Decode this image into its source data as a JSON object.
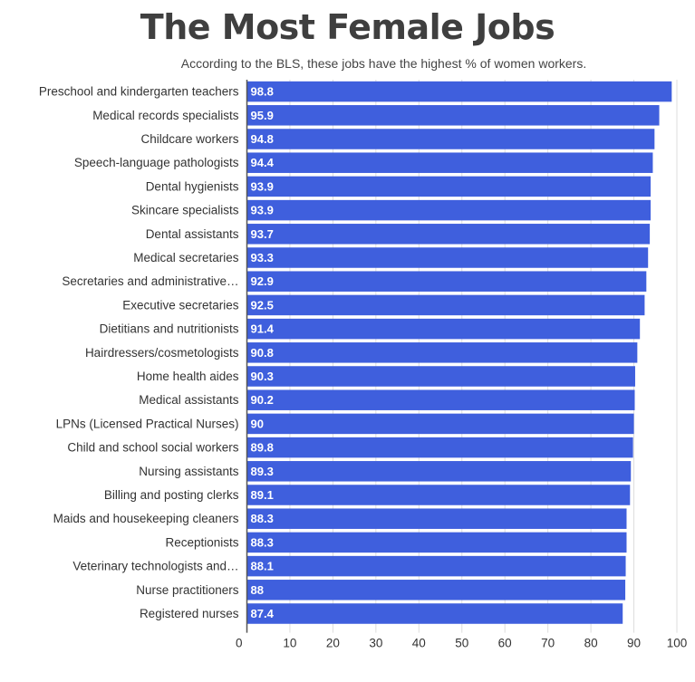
{
  "title": "The Most Female Jobs",
  "subtitle": "According to the BLS, these jobs have the highest % of women workers.",
  "colors": {
    "bar": "#3f5fdd",
    "grid": "#dddddd",
    "value_text": "#ffffff"
  },
  "chart_data": {
    "type": "bar",
    "orientation": "horizontal",
    "categories": [
      "Preschool and kindergarten teachers",
      "Medical records specialists",
      "Childcare workers",
      "Speech-language pathologists",
      "Dental hygienists",
      "Skincare specialists",
      "Dental assistants",
      "Medical secretaries",
      "Secretaries and administrative…",
      "Executive secretaries",
      "Dietitians and nutritionists",
      "Hairdressers/cosmetologists",
      "Home health aides",
      "Medical assistants",
      "LPNs (Licensed Practical Nurses)",
      "Child and school social workers",
      "Nursing assistants",
      "Billing and posting clerks",
      "Maids and housekeeping cleaners",
      "Receptionists",
      "Veterinary technologists and…",
      "Nurse practitioners",
      "Registered nurses"
    ],
    "values": [
      98.8,
      95.9,
      94.8,
      94.4,
      93.9,
      93.9,
      93.7,
      93.3,
      92.9,
      92.5,
      91.4,
      90.8,
      90.3,
      90.2,
      90,
      89.8,
      89.3,
      89.1,
      88.3,
      88.3,
      88.1,
      88,
      87.4
    ],
    "value_labels": [
      "98.8",
      "95.9",
      "94.8",
      "94.4",
      "93.9",
      "93.9",
      "93.7",
      "93.3",
      "92.9",
      "92.5",
      "91.4",
      "90.8",
      "90.3",
      "90.2",
      "90",
      "89.8",
      "89.3",
      "89.1",
      "88.3",
      "88.3",
      "88.1",
      "88",
      "87.4"
    ],
    "x_ticks": [
      "0",
      "10",
      "20",
      "30",
      "40",
      "50",
      "60",
      "70",
      "80",
      "90",
      "100"
    ],
    "xlim": [
      0,
      100
    ],
    "grid": true,
    "legend": "none"
  }
}
